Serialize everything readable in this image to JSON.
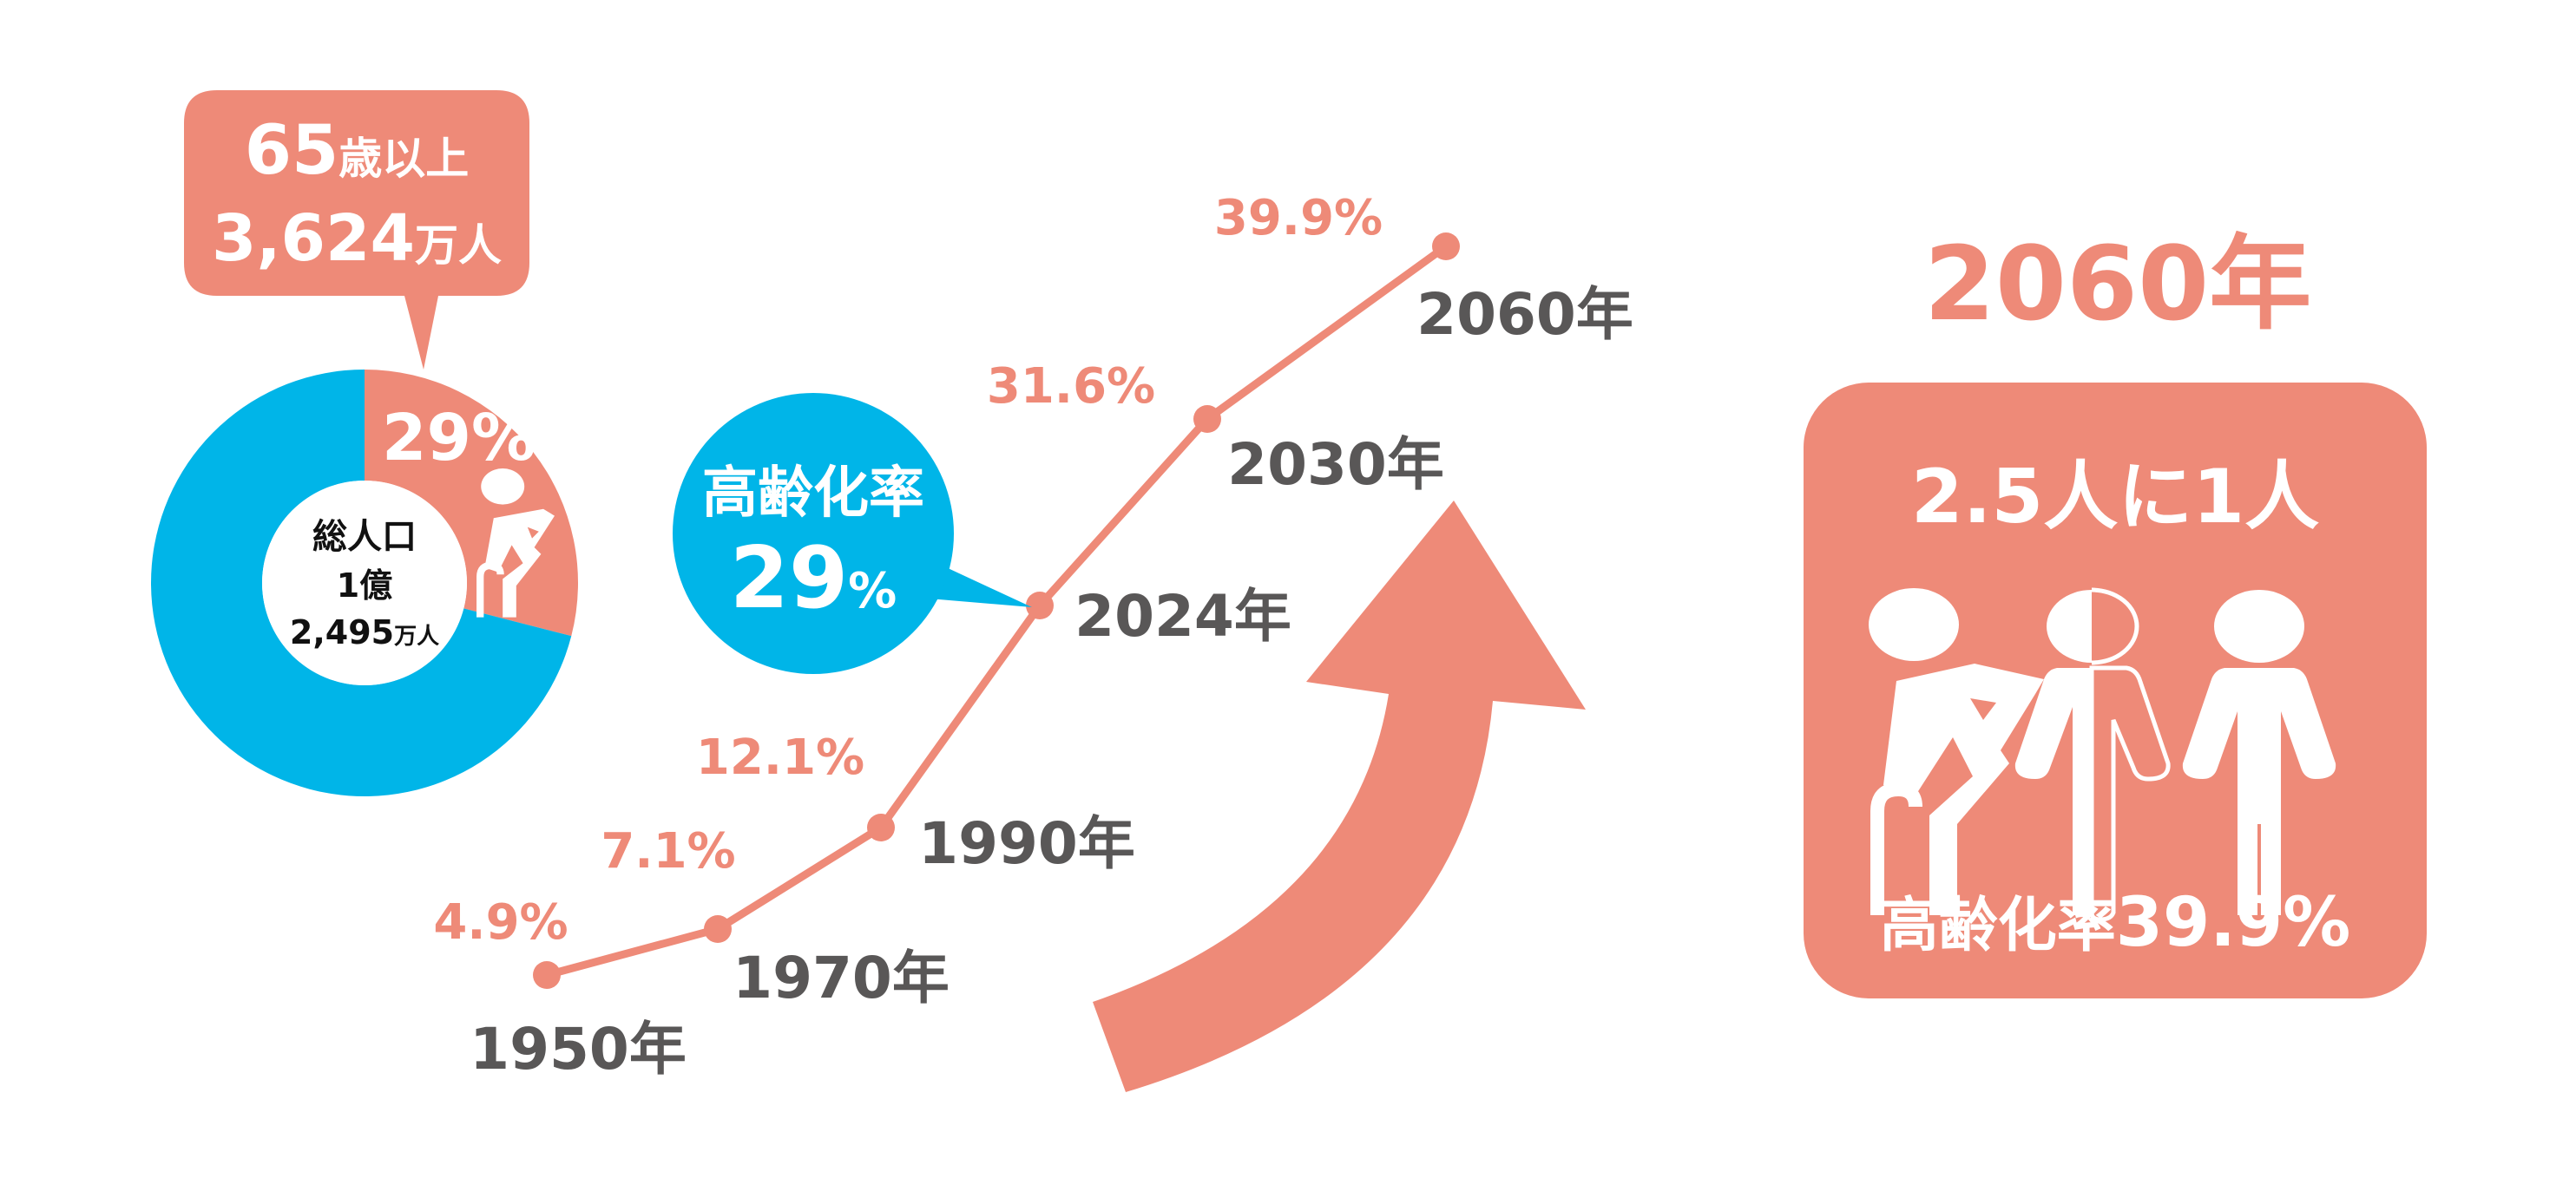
{
  "colors": {
    "salmon": "#EE8A78",
    "blue": "#00B5E8",
    "text_gray": "#595757",
    "white": "#FFFFFF"
  },
  "chart_data": [
    {
      "type": "pie",
      "subtype": "donut",
      "center_label": {
        "line1": "総人口",
        "line2": "1億",
        "line3_value": "2,495",
        "line3_unit": "万人"
      },
      "slices": [
        {
          "label": "29%",
          "value": 29,
          "color": "#EE8A78"
        },
        {
          "value": 71,
          "color": "#00B5E8"
        }
      ],
      "callout": {
        "line1_value": "65",
        "line1_unit": "歳以上",
        "line2_value": "3,624",
        "line2_unit": "万人"
      },
      "slice_icon": "elderly-person-with-cane-icon"
    },
    {
      "type": "line",
      "categories": [
        "1950年",
        "1970年",
        "1990年",
        "2024年",
        "2030年",
        "2060年"
      ],
      "values": [
        4.9,
        7.1,
        12.1,
        29,
        31.6,
        39.9
      ],
      "value_labels": [
        "4.9%",
        "7.1%",
        "12.1%",
        "",
        "31.6%",
        "39.9%"
      ],
      "highlight": {
        "category": "2024年",
        "title": "高齢化率",
        "value_text": "29",
        "unit": "%"
      },
      "trend_icon": "upward-curved-arrow-icon",
      "grid": false
    }
  ],
  "summary": {
    "year": "2060年",
    "ratio_text": "2.5人に1人",
    "rate_label": "高齢化率",
    "rate_value": "39.9%",
    "icons": [
      "elderly-person-with-cane-icon",
      "half-person-icon",
      "person-icon"
    ]
  }
}
